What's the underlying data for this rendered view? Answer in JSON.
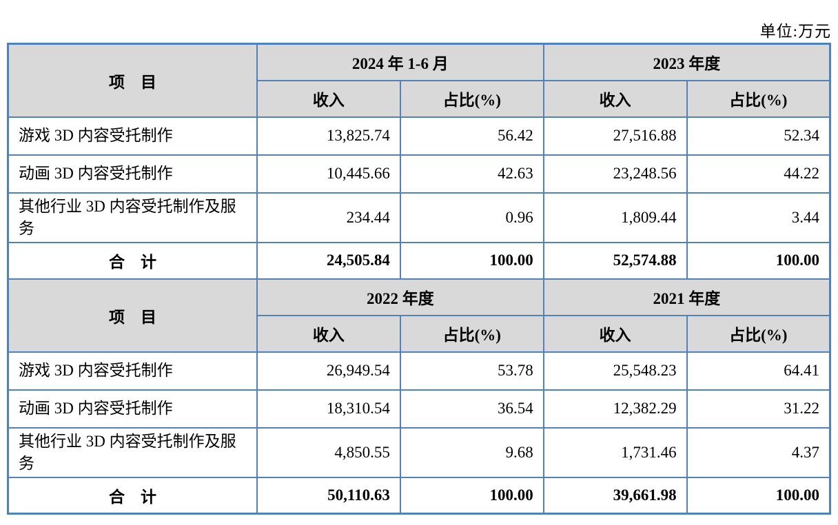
{
  "unit_label": "单位:万元",
  "colors": {
    "table_border": "#4f81bd",
    "header_background": "#d9d9d9",
    "text": "#000000"
  },
  "tables": [
    {
      "item_header": "项　目",
      "period1": "2024 年 1-6 月",
      "period2": "2023 年度",
      "income_label": "收入",
      "ratio_label": "占比(%)",
      "rows": [
        {
          "label": "游戏 3D 内容受托制作",
          "v1": "13,825.74",
          "p1": "56.42",
          "v2": "27,516.88",
          "p2": "52.34"
        },
        {
          "label": "动画 3D 内容受托制作",
          "v1": "10,445.66",
          "p1": "42.63",
          "v2": "23,248.56",
          "p2": "44.22"
        },
        {
          "label": "其他行业 3D 内容受托制作及服务",
          "v1": "234.44",
          "p1": "0.96",
          "v2": "1,809.44",
          "p2": "3.44"
        }
      ],
      "total": {
        "label": "合　计",
        "v1": "24,505.84",
        "p1": "100.00",
        "v2": "52,574.88",
        "p2": "100.00"
      }
    },
    {
      "item_header": "项　目",
      "period1": "2022 年度",
      "period2": "2021 年度",
      "income_label": "收入",
      "ratio_label": "占比(%)",
      "rows": [
        {
          "label": "游戏 3D 内容受托制作",
          "v1": "26,949.54",
          "p1": "53.78",
          "v2": "25,548.23",
          "p2": "64.41"
        },
        {
          "label": "动画 3D 内容受托制作",
          "v1": "18,310.54",
          "p1": "36.54",
          "v2": "12,382.29",
          "p2": "31.22"
        },
        {
          "label": "其他行业 3D 内容受托制作及服务",
          "v1": "4,850.55",
          "p1": "9.68",
          "v2": "1,731.46",
          "p2": "4.37"
        }
      ],
      "total": {
        "label": "合　计",
        "v1": "50,110.63",
        "p1": "100.00",
        "v2": "39,661.98",
        "p2": "100.00"
      }
    }
  ]
}
